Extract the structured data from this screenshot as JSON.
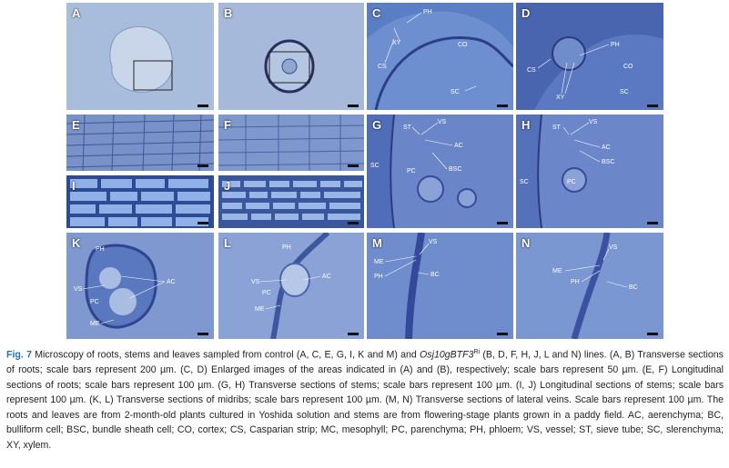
{
  "panels": {
    "A": {
      "label": "A"
    },
    "B": {
      "label": "B"
    },
    "C": {
      "label": "C",
      "ph": "PH",
      "xy": "XY",
      "co": "CO",
      "cs": "CS",
      "sc": "SC"
    },
    "D": {
      "label": "D",
      "ph": "PH",
      "cs": "CS",
      "co": "CO",
      "xy": "XY",
      "sc": "SC"
    },
    "E": {
      "label": "E"
    },
    "F": {
      "label": "F"
    },
    "G": {
      "label": "G",
      "st": "ST",
      "vs": "VS",
      "ac": "AC",
      "sc": "SC",
      "pc": "PC",
      "bsc": "BSC"
    },
    "H": {
      "label": "H",
      "st": "ST",
      "vs": "VS",
      "ac": "AC",
      "bsc": "BSC",
      "sc": "SC",
      "pc": "PC"
    },
    "I": {
      "label": "I"
    },
    "J": {
      "label": "J"
    },
    "K": {
      "label": "K",
      "ph": "PH",
      "vs": "VS",
      "ac": "AC",
      "pc": "PC",
      "me": "ME"
    },
    "L": {
      "label": "L",
      "ph": "PH",
      "vs": "VS",
      "ac": "AC",
      "pc": "PC",
      "me": "ME"
    },
    "M": {
      "label": "M",
      "vs": "VS",
      "me": "ME",
      "ph": "PH",
      "bc": "BC"
    },
    "N": {
      "label": "N",
      "vs": "VS",
      "me": "ME",
      "ph": "PH",
      "bc": "BC"
    }
  },
  "caption": {
    "fig_number": "Fig. 7",
    "text_1": " Microscopy of roots, stems and leaves sampled from control (A, C, E, G, I, K and M) and ",
    "gene": "Osj10gBTF3",
    "gene_sup": "Ri",
    "text_2": " (B, D, F, H, J, L and N) lines. (A, B) Transverse sections of roots; scale bars represent 200 µm. (C, D) Enlarged images of the areas indicated in (A) and (B), respectively; scale bars represent 50 µm. (E, F) Longitudinal sections of roots; scale bars represent 100 µm. (G, H) Transverse sections of stems; scale bars represent 100 µm. (I, J) Longitudinal sections of stems; scale bars represent 100 µm. (K, L) Transverse sections of midribs; scale bars represent 100 µm. (M, N) Transverse sections of lateral veins. Scale bars represent 100 µm. The roots and leaves are from 2-month-old plants cultured in Yoshida solution and stems are from flowering-stage plants grown in a paddy field. AC, aerenchyma; BC, bulliform cell; BSC, bundle sheath cell; CO, cortex; CS, Casparian strip; MC, mesophyll; PC, parenchyma; PH, phloem; VS, vessel; ST, sieve tube; SC, slerenchyma; XY, xylem."
  }
}
